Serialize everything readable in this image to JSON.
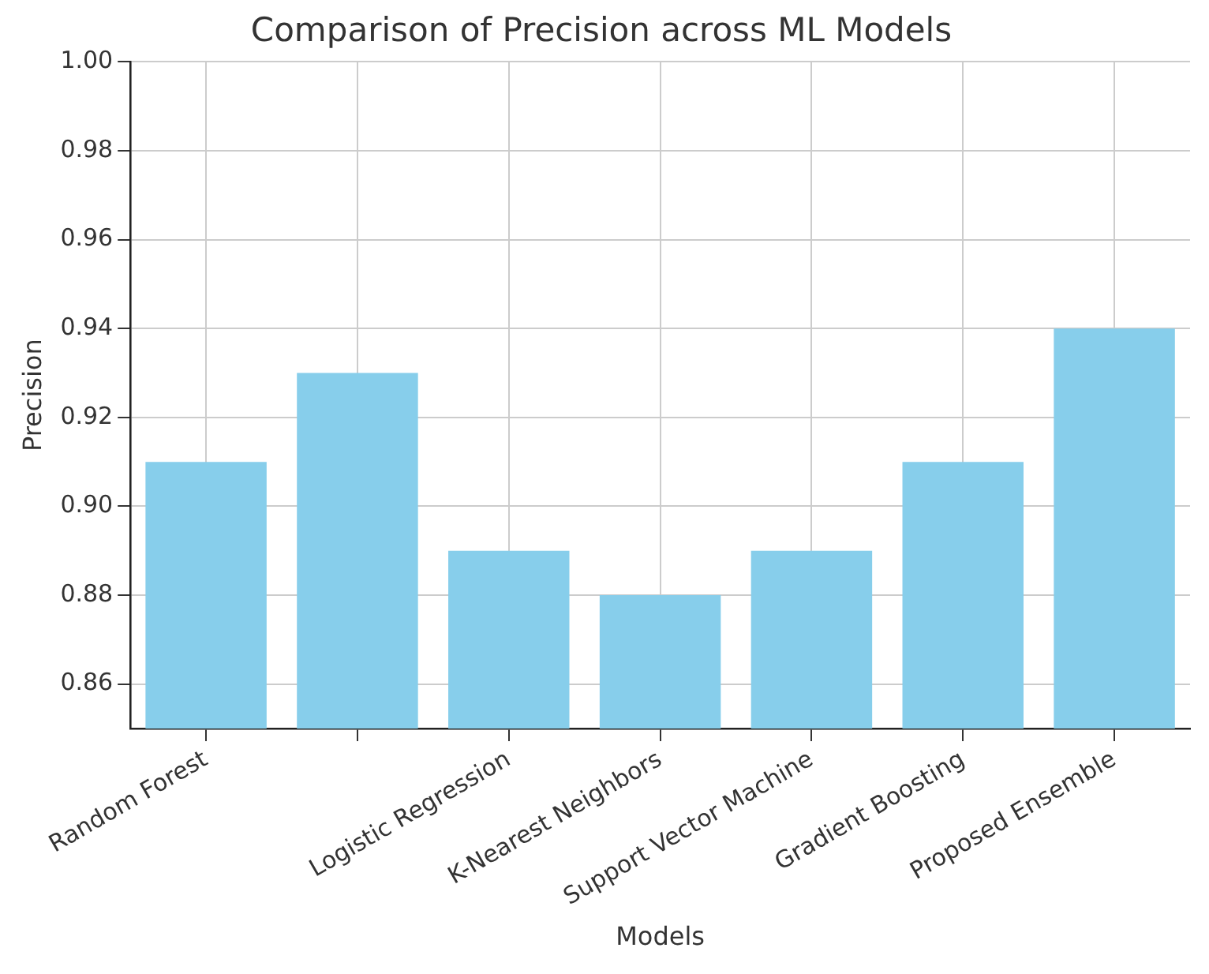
{
  "chart_data": {
    "type": "bar",
    "title": "Comparison of Precision across ML Models",
    "xlabel": "Models",
    "ylabel": "Precision",
    "categories": [
      "Random Forest",
      null,
      "Logistic Regression",
      "K-Nearest Neighbors",
      "Support Vector Machine",
      "Gradient Boosting",
      "Proposed Ensemble"
    ],
    "values": [
      0.91,
      0.93,
      0.89,
      0.88,
      0.89,
      0.91,
      0.94
    ],
    "color": "#87ceeb",
    "ylim": [
      0.85,
      1.0
    ],
    "yticks": [
      {
        "value": 0.86,
        "label": "0.86"
      },
      {
        "value": 0.88,
        "label": "0.88"
      },
      {
        "value": 0.9,
        "label": "0.90"
      },
      {
        "value": 0.92,
        "label": "0.92"
      },
      {
        "value": 0.94,
        "label": "0.94"
      },
      {
        "value": 0.96,
        "label": "0.96"
      },
      {
        "value": 0.98,
        "label": "0.98"
      },
      {
        "value": 1.0,
        "label": "1.00"
      }
    ],
    "grid": true,
    "legend": false
  }
}
